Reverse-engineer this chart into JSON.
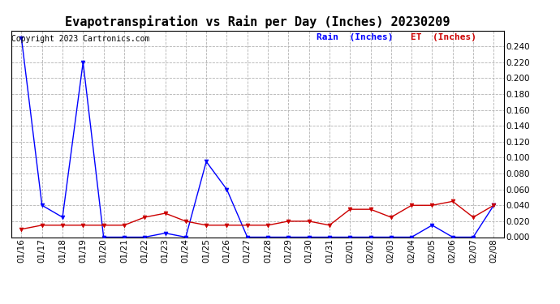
{
  "title": "Evapotranspiration vs Rain per Day (Inches) 20230209",
  "copyright": "Copyright 2023 Cartronics.com",
  "legend_rain": "Rain  (Inches)",
  "legend_et": "ET  (Inches)",
  "rain_color": "#0000ff",
  "et_color": "#cc0000",
  "background_color": "#ffffff",
  "grid_color": "#aaaaaa",
  "xlabels": [
    "01/16",
    "01/17",
    "01/18",
    "01/19",
    "01/20",
    "01/21",
    "01/22",
    "01/23",
    "01/24",
    "01/25",
    "01/26",
    "01/27",
    "01/28",
    "01/29",
    "01/30",
    "01/31",
    "02/01",
    "02/02",
    "02/03",
    "02/04",
    "02/05",
    "02/06",
    "02/07",
    "02/08"
  ],
  "rain_values": [
    0.25,
    0.04,
    0.025,
    0.22,
    0.0,
    0.0,
    0.0,
    0.005,
    0.0,
    0.095,
    0.06,
    0.0,
    0.0,
    0.0,
    0.0,
    0.0,
    0.0,
    0.0,
    0.0,
    0.0,
    0.015,
    0.0,
    0.0,
    0.04
  ],
  "et_values": [
    0.01,
    0.015,
    0.015,
    0.015,
    0.015,
    0.015,
    0.025,
    0.03,
    0.02,
    0.015,
    0.015,
    0.015,
    0.015,
    0.02,
    0.02,
    0.015,
    0.035,
    0.035,
    0.025,
    0.04,
    0.04,
    0.045,
    0.025,
    0.04
  ],
  "ylim": [
    0.0,
    0.26
  ],
  "yticks": [
    0.0,
    0.02,
    0.04,
    0.06,
    0.08,
    0.1,
    0.12,
    0.14,
    0.16,
    0.18,
    0.2,
    0.22,
    0.24
  ],
  "title_fontsize": 11,
  "copyright_fontsize": 7,
  "legend_fontsize": 8,
  "tick_fontsize": 7.5
}
